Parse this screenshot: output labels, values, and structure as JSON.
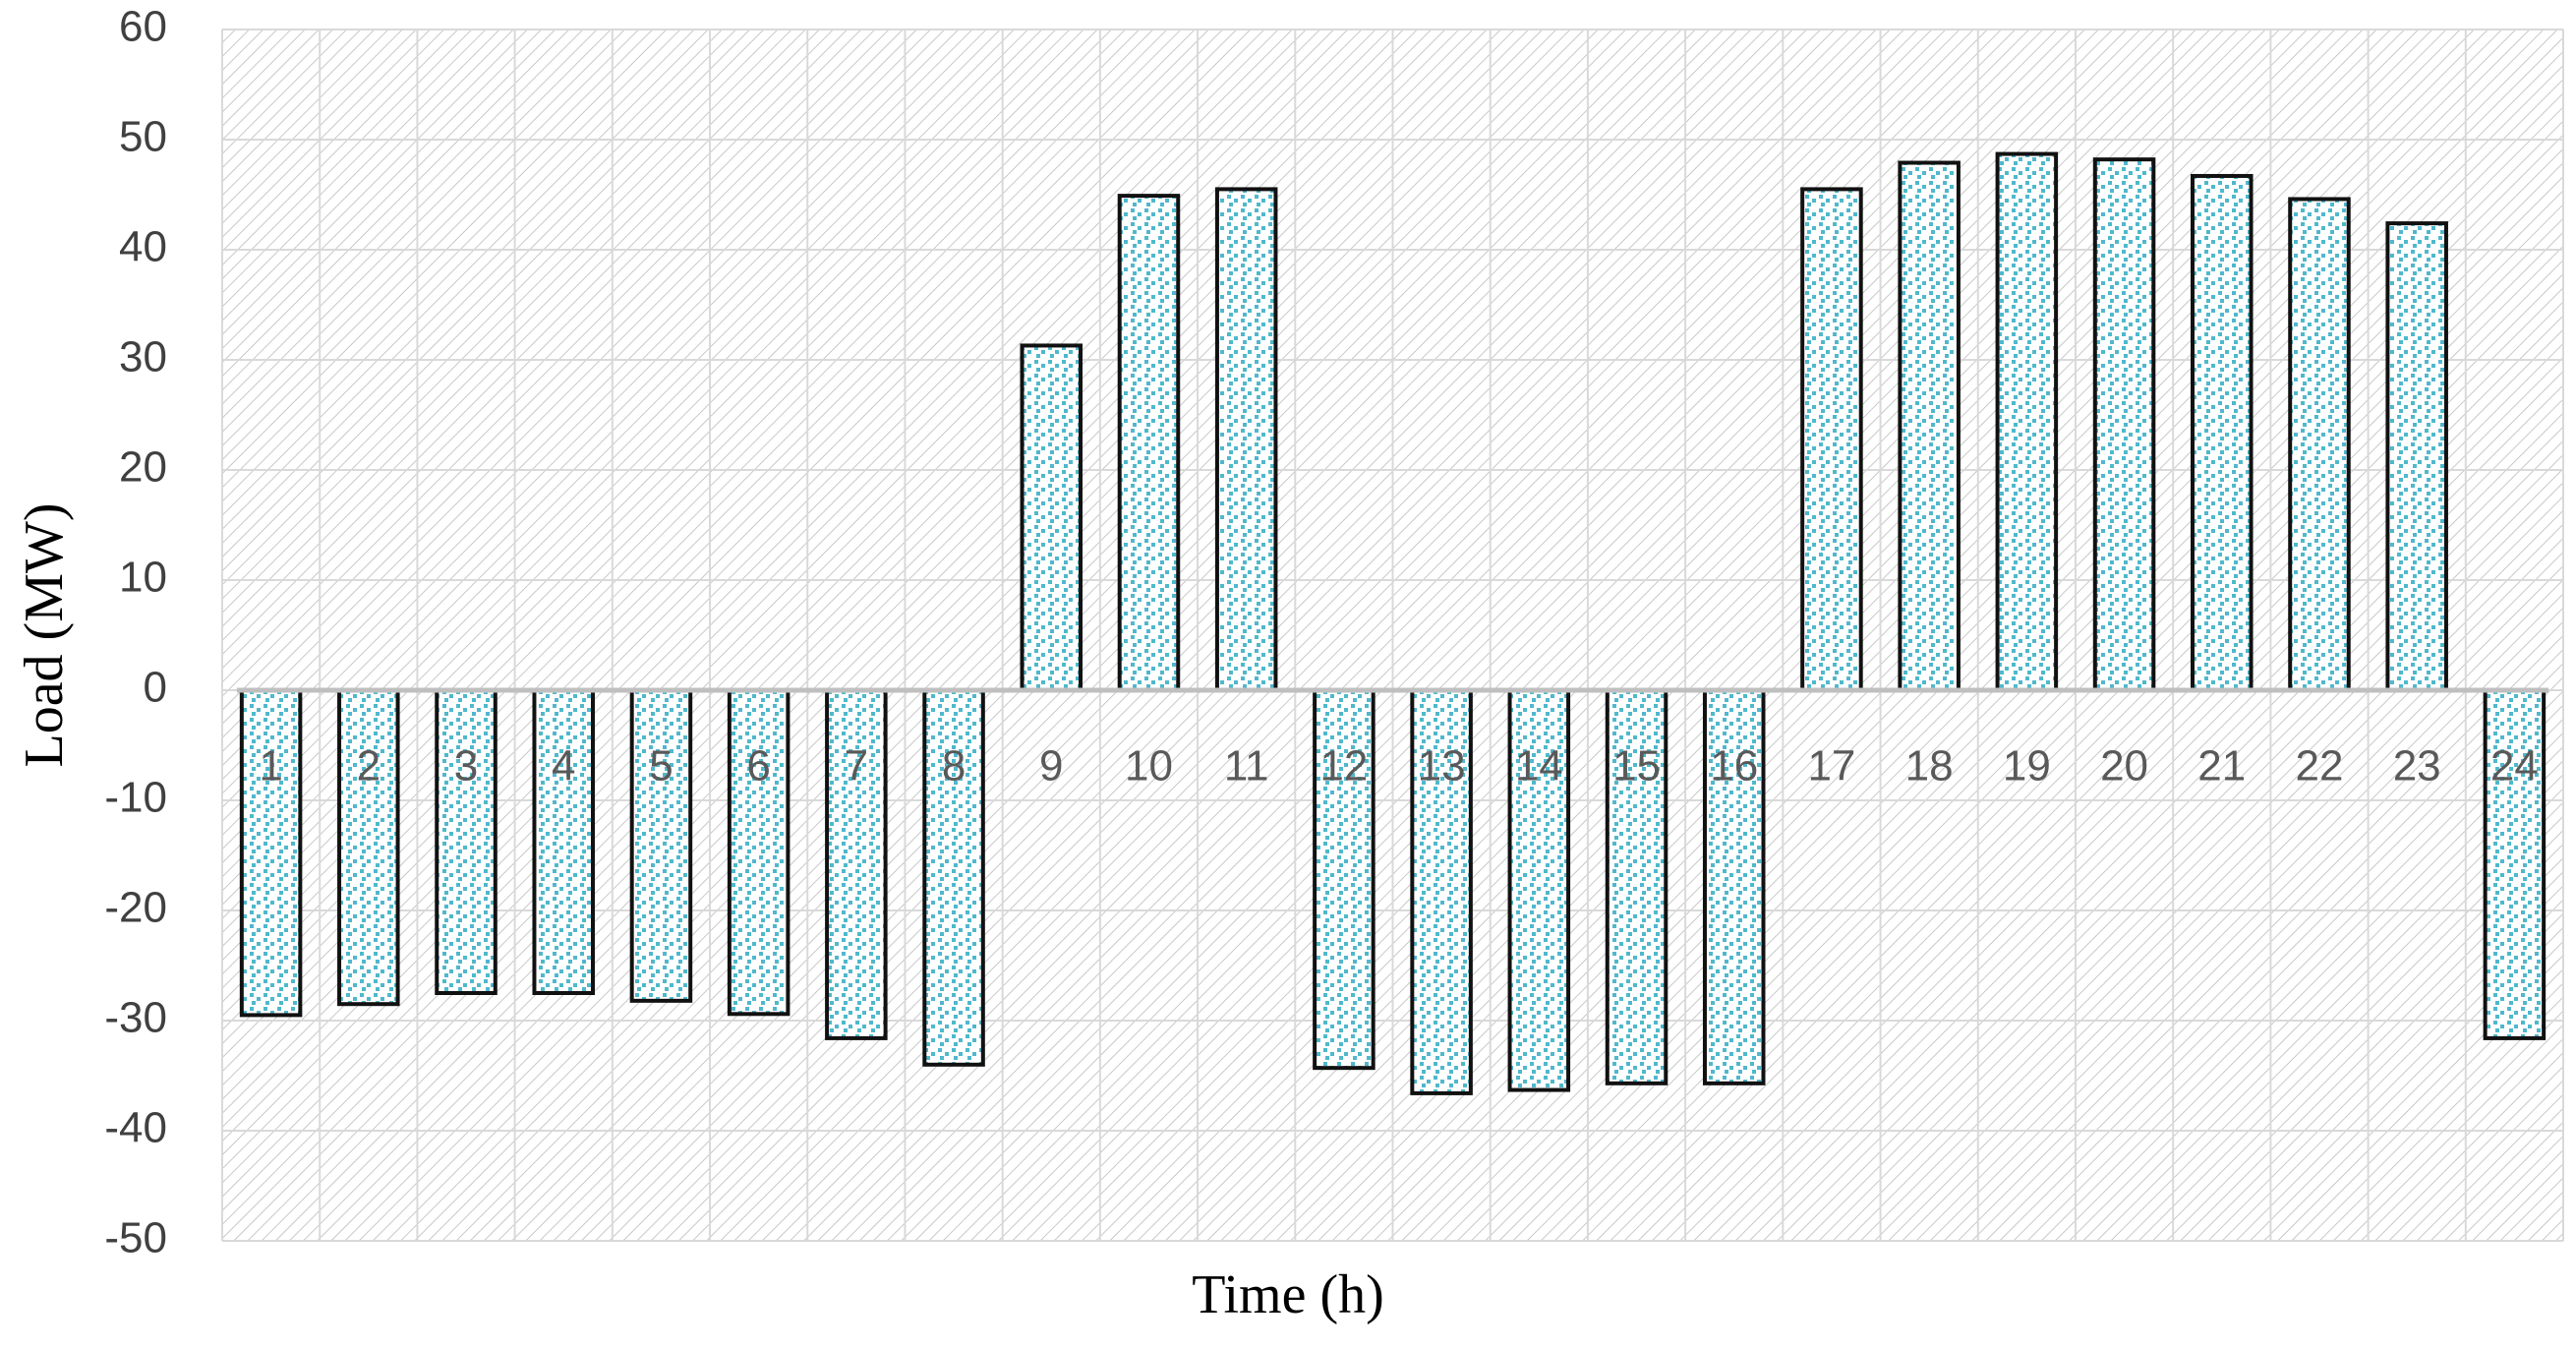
{
  "chart_data": {
    "type": "bar",
    "x_label": "Time (h)",
    "y_label": "Load (MW)",
    "categories": [
      "1",
      "2",
      "3",
      "4",
      "5",
      "6",
      "7",
      "8",
      "9",
      "10",
      "11",
      "12",
      "13",
      "14",
      "15",
      "16",
      "17",
      "18",
      "19",
      "20",
      "21",
      "22",
      "23",
      "24"
    ],
    "values": [
      -29.5,
      -28.5,
      -27.5,
      -27.5,
      -28.2,
      -29.4,
      -31.6,
      -34,
      31.3,
      44.9,
      45.5,
      -34.3,
      -36.6,
      -36.3,
      -35.7,
      -35.7,
      45.5,
      47.9,
      48.7,
      48.2,
      46.7,
      44.6,
      42.4,
      -31.6
    ],
    "color": "#4fb8cc",
    "ylim": [
      -50,
      60
    ],
    "yticks": [
      -50,
      -40,
      -30,
      -20,
      -10,
      0,
      10,
      20,
      30,
      40,
      50,
      60
    ],
    "grid": true
  }
}
